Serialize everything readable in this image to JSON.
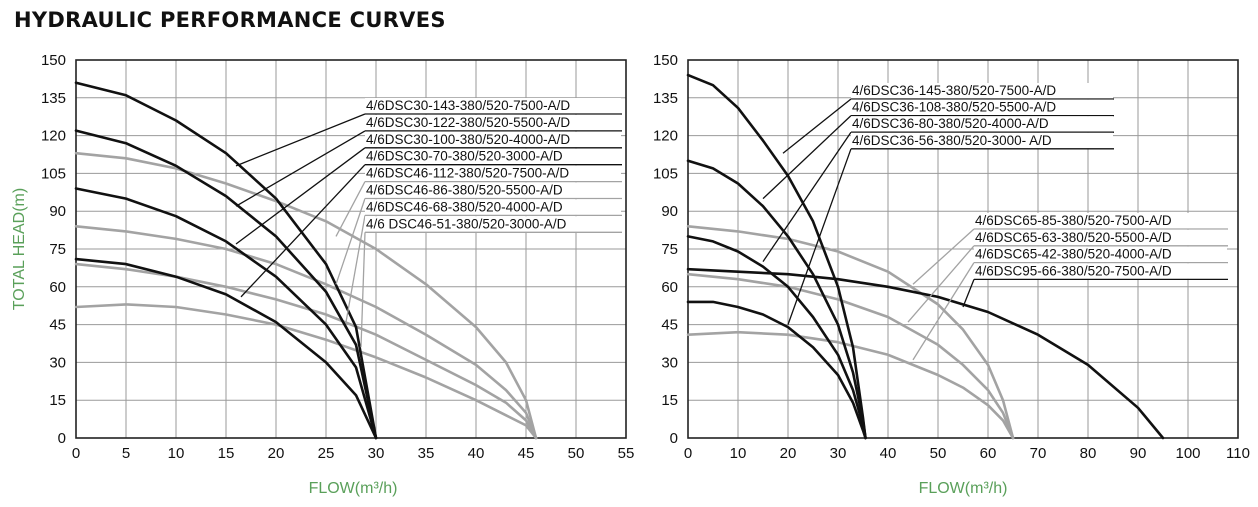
{
  "header": {
    "title": "HYDRAULIC PERFORMANCE CURVES"
  },
  "colors": {
    "black_curve": "#111111",
    "gray_curve": "#a3a3a3",
    "grid": "#9a9a9a",
    "axis_title": "#5aa05a"
  },
  "chart_data": [
    {
      "type": "line",
      "xlabel": "FLOW(m³/h)",
      "ylabel": "TOTAL HEAD(m)",
      "xlim": [
        0,
        55
      ],
      "ylim": [
        0,
        150
      ],
      "x_ticks": [
        "0",
        "5",
        "10",
        "15",
        "20",
        "25",
        "30",
        "35",
        "40",
        "45",
        "50",
        "55"
      ],
      "y_ticks": [
        "0",
        "15",
        "30",
        "45",
        "60",
        "75",
        "90",
        "105",
        "120",
        "135",
        "150"
      ],
      "grid": true,
      "series": [
        {
          "name": "4/6DSC30-143-380/520-7500-A/D",
          "color": "black",
          "points": [
            [
              0,
              141
            ],
            [
              5,
              136
            ],
            [
              10,
              126
            ],
            [
              15,
              113
            ],
            [
              20,
              95
            ],
            [
              25,
              69
            ],
            [
              28,
              44
            ],
            [
              30,
              0
            ]
          ]
        },
        {
          "name": "4/6DSC30-122-380/520-5500-A/D",
          "color": "black",
          "points": [
            [
              0,
              122
            ],
            [
              5,
              117
            ],
            [
              10,
              108
            ],
            [
              15,
              96
            ],
            [
              20,
              80
            ],
            [
              25,
              58
            ],
            [
              28,
              37
            ],
            [
              30,
              0
            ]
          ]
        },
        {
          "name": "4/6DSC30-100-380/520-4000-A/D",
          "color": "black",
          "points": [
            [
              0,
              99
            ],
            [
              5,
              95
            ],
            [
              10,
              88
            ],
            [
              15,
              78
            ],
            [
              20,
              64
            ],
            [
              25,
              45
            ],
            [
              28,
              28
            ],
            [
              30,
              0
            ]
          ]
        },
        {
          "name": "4/6DSC30-70-380/520-3000-A/D",
          "color": "black",
          "points": [
            [
              0,
              71
            ],
            [
              5,
              69
            ],
            [
              10,
              64
            ],
            [
              15,
              57
            ],
            [
              20,
              46
            ],
            [
              25,
              30
            ],
            [
              28,
              17
            ],
            [
              30,
              0
            ]
          ]
        },
        {
          "name": "4/6DSC46-112-380/520-7500-A/D",
          "color": "gray",
          "points": [
            [
              0,
              113
            ],
            [
              5,
              111
            ],
            [
              10,
              107
            ],
            [
              15,
              101
            ],
            [
              20,
              94
            ],
            [
              25,
              86
            ],
            [
              30,
              75
            ],
            [
              35,
              61
            ],
            [
              40,
              44
            ],
            [
              43,
              30
            ],
            [
              45,
              15
            ],
            [
              46,
              0
            ]
          ]
        },
        {
          "name": "4/6DSC46-86-380/520-5500-A/D",
          "color": "gray",
          "points": [
            [
              0,
              84
            ],
            [
              5,
              82
            ],
            [
              10,
              79
            ],
            [
              15,
              75
            ],
            [
              20,
              69
            ],
            [
              25,
              61
            ],
            [
              30,
              52
            ],
            [
              35,
              41
            ],
            [
              40,
              29
            ],
            [
              43,
              19
            ],
            [
              45,
              10
            ],
            [
              46,
              0
            ]
          ]
        },
        {
          "name": "4/6DSC46-68-380/520-4000-A/D",
          "color": "gray",
          "points": [
            [
              0,
              69
            ],
            [
              5,
              67
            ],
            [
              10,
              64
            ],
            [
              15,
              60
            ],
            [
              20,
              55
            ],
            [
              25,
              49
            ],
            [
              30,
              41
            ],
            [
              35,
              31
            ],
            [
              40,
              21
            ],
            [
              43,
              14
            ],
            [
              45,
              7
            ],
            [
              46,
              0
            ]
          ]
        },
        {
          "name": "4/6 DSC46-51-380/520-3000-A/D",
          "color": "gray",
          "points": [
            [
              0,
              52
            ],
            [
              5,
              53
            ],
            [
              10,
              52
            ],
            [
              15,
              49
            ],
            [
              20,
              45
            ],
            [
              25,
              39
            ],
            [
              30,
              32
            ],
            [
              35,
              24
            ],
            [
              40,
              15
            ],
            [
              43,
              9
            ],
            [
              45,
              5
            ],
            [
              46,
              0
            ]
          ]
        }
      ],
      "annotations": [
        {
          "series": 0,
          "at": [
            16,
            108
          ]
        },
        {
          "series": 1,
          "at": [
            16,
            92
          ]
        },
        {
          "series": 2,
          "at": [
            16,
            77
          ]
        },
        {
          "series": 3,
          "at": [
            16.5,
            56
          ]
        },
        {
          "series": 4,
          "at": [
            26,
            80
          ]
        },
        {
          "series": 5,
          "at": [
            26,
            61
          ]
        },
        {
          "series": 6,
          "at": [
            27,
            46
          ]
        },
        {
          "series": 7,
          "at": [
            28.5,
            36
          ]
        }
      ]
    },
    {
      "type": "line",
      "xlabel": "FLOW(m³/h)",
      "ylabel": "",
      "xlim": [
        0,
        110
      ],
      "ylim": [
        0,
        150
      ],
      "x_ticks": [
        "0",
        "10",
        "20",
        "30",
        "40",
        "50",
        "60",
        "70",
        "80",
        "90",
        "100",
        "110"
      ],
      "y_ticks": [
        "0",
        "15",
        "30",
        "45",
        "60",
        "75",
        "90",
        "105",
        "120",
        "135",
        "150"
      ],
      "grid": true,
      "series": [
        {
          "name": "4/6DSC36-145-380/520-7500-A/D",
          "color": "black",
          "points": [
            [
              0,
              144
            ],
            [
              5,
              140
            ],
            [
              10,
              131
            ],
            [
              15,
              118
            ],
            [
              20,
              104
            ],
            [
              25,
              86
            ],
            [
              30,
              60
            ],
            [
              33,
              36
            ],
            [
              35,
              8
            ],
            [
              35.5,
              0
            ]
          ]
        },
        {
          "name": "4/6DSC36-108-380/520-5500-A/D",
          "color": "black",
          "points": [
            [
              0,
              110
            ],
            [
              5,
              107
            ],
            [
              10,
              101
            ],
            [
              15,
              92
            ],
            [
              20,
              80
            ],
            [
              25,
              65
            ],
            [
              30,
              45
            ],
            [
              33,
              26
            ],
            [
              35,
              7
            ],
            [
              35.5,
              0
            ]
          ]
        },
        {
          "name": "4/6DSC36-80-380/520-4000-A/D",
          "color": "black",
          "points": [
            [
              0,
              80
            ],
            [
              5,
              78
            ],
            [
              10,
              74
            ],
            [
              15,
              68
            ],
            [
              20,
              60
            ],
            [
              25,
              48
            ],
            [
              30,
              33
            ],
            [
              33,
              19
            ],
            [
              35,
              5
            ],
            [
              35.5,
              0
            ]
          ]
        },
        {
          "name": "4/6DSC36-56-380/520-3000- A/D",
          "color": "black",
          "points": [
            [
              0,
              54
            ],
            [
              5,
              54
            ],
            [
              10,
              52
            ],
            [
              15,
              49
            ],
            [
              20,
              44
            ],
            [
              25,
              36
            ],
            [
              30,
              25
            ],
            [
              33,
              14
            ],
            [
              35,
              3
            ],
            [
              35.5,
              0
            ]
          ]
        },
        {
          "name": "4/6DSC65-85-380/520-7500-A/D",
          "color": "gray",
          "points": [
            [
              0,
              84
            ],
            [
              10,
              82
            ],
            [
              20,
              79
            ],
            [
              30,
              74
            ],
            [
              40,
              66
            ],
            [
              50,
              53
            ],
            [
              55,
              43
            ],
            [
              60,
              29
            ],
            [
              63,
              15
            ],
            [
              65,
              0
            ]
          ]
        },
        {
          "name": "4/6DSC65-63-380/520-5500-A/D",
          "color": "gray",
          "points": [
            [
              0,
              65
            ],
            [
              10,
              63
            ],
            [
              20,
              60
            ],
            [
              30,
              55
            ],
            [
              40,
              48
            ],
            [
              50,
              37
            ],
            [
              55,
              29
            ],
            [
              60,
              19
            ],
            [
              63,
              10
            ],
            [
              65,
              0
            ]
          ]
        },
        {
          "name": "4/6DSC65-42-380/520-4000-A/D",
          "color": "gray",
          "points": [
            [
              0,
              41
            ],
            [
              10,
              42
            ],
            [
              20,
              41
            ],
            [
              30,
              38
            ],
            [
              40,
              33
            ],
            [
              50,
              25
            ],
            [
              55,
              20
            ],
            [
              60,
              13
            ],
            [
              63,
              7
            ],
            [
              65,
              0
            ]
          ]
        },
        {
          "name": "4/6DSC95-66-380/520-7500-A/D",
          "color": "black",
          "points": [
            [
              0,
              67
            ],
            [
              10,
              66
            ],
            [
              20,
              65
            ],
            [
              30,
              63
            ],
            [
              40,
              60
            ],
            [
              50,
              56
            ],
            [
              60,
              50
            ],
            [
              70,
              41
            ],
            [
              80,
              29
            ],
            [
              90,
              12
            ],
            [
              95,
              0
            ]
          ]
        }
      ],
      "annotations": [
        {
          "series": 0,
          "at": [
            19,
            113
          ]
        },
        {
          "series": 1,
          "at": [
            15,
            95
          ]
        },
        {
          "series": 2,
          "at": [
            15,
            70
          ]
        },
        {
          "series": 3,
          "at": [
            20,
            45
          ]
        },
        {
          "series": 4,
          "at": [
            45,
            61
          ]
        },
        {
          "series": 5,
          "at": [
            44,
            46
          ]
        },
        {
          "series": 6,
          "at": [
            45,
            31
          ]
        },
        {
          "series": 7,
          "at": [
            55,
            52
          ]
        }
      ]
    }
  ]
}
